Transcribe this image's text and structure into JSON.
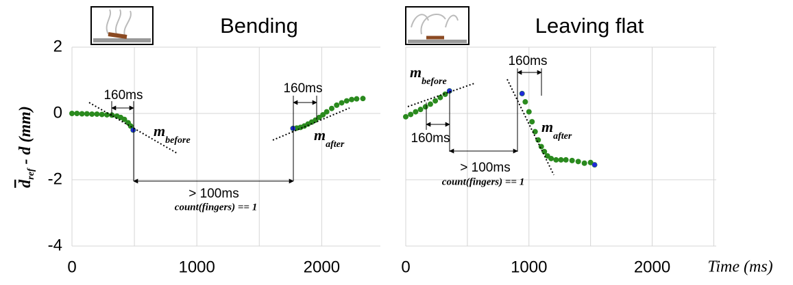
{
  "y_label": {
    "main": "d",
    "sub": "ref",
    "rest": " - d (mm)"
  },
  "x_label": "Time (ms)",
  "chart_data": [
    {
      "type": "scatter",
      "title": "Bending",
      "x": [
        0,
        40,
        80,
        120,
        160,
        200,
        240,
        280,
        320,
        360,
        390,
        420,
        450,
        470,
        490,
        1770,
        1800,
        1830,
        1860,
        1890,
        1920,
        1950,
        1980,
        2010,
        2040,
        2080,
        2120,
        2160,
        2200,
        2240,
        2280,
        2330
      ],
      "series": [
        {
          "color": "#2a8a1e",
          "values": [
            0,
            0,
            -0.01,
            -0.01,
            -0.02,
            -0.02,
            -0.03,
            -0.04,
            -0.05,
            -0.08,
            -0.12,
            -0.18,
            -0.28,
            -0.38,
            -0.5,
            -0.45,
            -0.44,
            -0.42,
            -0.38,
            -0.32,
            -0.26,
            -0.2,
            -0.12,
            -0.04,
            0.05,
            0.15,
            0.25,
            0.32,
            0.38,
            0.42,
            0.44,
            0.45
          ]
        }
      ],
      "highlight": {
        "color": "#1f2bd8",
        "x": [
          490,
          1770
        ],
        "values": [
          -0.5,
          -0.45
        ]
      },
      "xlim": [
        0,
        2470
      ],
      "ylim": [
        -4,
        2
      ],
      "xticks": [
        0,
        1000,
        2000
      ],
      "yticks": [
        -4,
        -2,
        0,
        2
      ],
      "xgrid": [
        500,
        1500
      ],
      "show_ytick_labels": true,
      "annotations": {
        "window_before": "160ms",
        "window_after": "160ms",
        "gap": "> 100ms",
        "condition": "count(fingers) == 1",
        "m_before": {
          "m": "m",
          "sub": "before"
        },
        "m_after": {
          "m": "m",
          "sub": "after"
        }
      }
    },
    {
      "type": "scatter",
      "title": "Leaving flat",
      "x": [
        0,
        40,
        80,
        120,
        160,
        200,
        240,
        280,
        320,
        355,
        944,
        970,
        1000,
        1025,
        1050,
        1075,
        1100,
        1125,
        1150,
        1180,
        1220,
        1260,
        1300,
        1350,
        1400,
        1450,
        1500,
        1533
      ],
      "series": [
        {
          "color": "#2a8a1e",
          "values": [
            -0.1,
            -0.03,
            0.05,
            0.12,
            0.2,
            0.28,
            0.38,
            0.48,
            0.58,
            0.68,
            0.6,
            0.35,
            0.05,
            -0.25,
            -0.55,
            -0.8,
            -1.0,
            -1.15,
            -1.28,
            -1.36,
            -1.4,
            -1.4,
            -1.4,
            -1.42,
            -1.45,
            -1.5,
            -1.48,
            -1.55
          ]
        }
      ],
      "highlight": {
        "color": "#1f2bd8",
        "x": [
          355,
          944,
          1533
        ],
        "values": [
          0.68,
          0.6,
          -1.55
        ]
      },
      "xlim": [
        0,
        2520
      ],
      "ylim": [
        -4,
        2
      ],
      "xticks": [
        0,
        1000,
        2000
      ],
      "yticks": [
        -4,
        -2,
        0,
        2
      ],
      "xgrid": [
        500,
        1500,
        2500
      ],
      "show_ytick_labels": false,
      "annotations": {
        "window_before": "160ms",
        "window_after": "160ms",
        "gap": "> 100ms",
        "condition": "count(fingers) == 1",
        "m_before": {
          "m": "m",
          "sub": "before"
        },
        "m_after": {
          "m": "m",
          "sub": "after"
        }
      }
    }
  ]
}
